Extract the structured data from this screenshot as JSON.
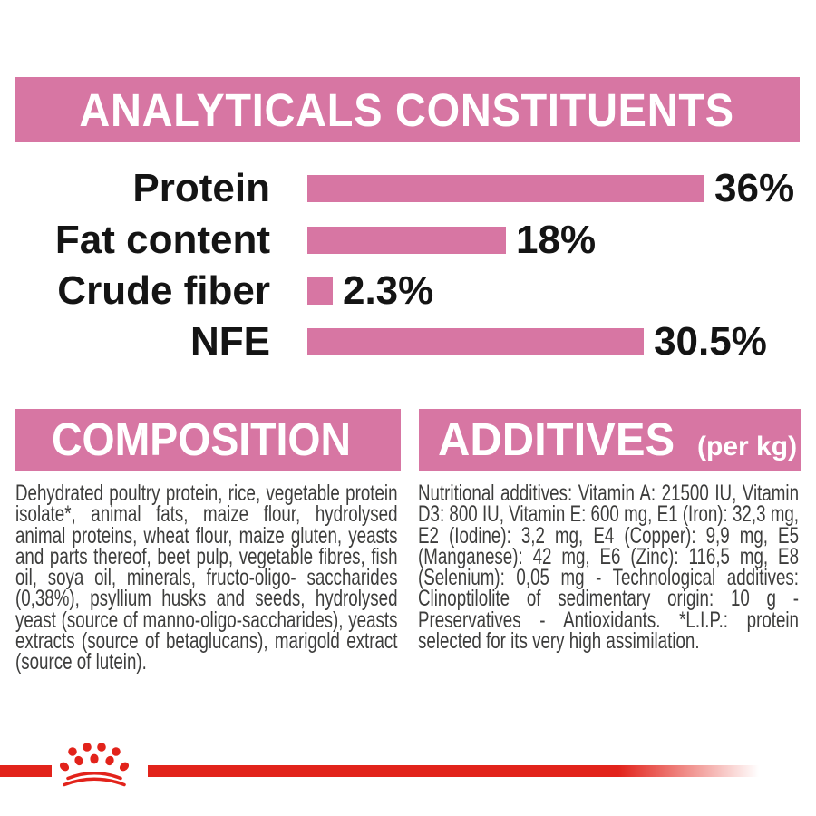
{
  "colors": {
    "pink": "#d776a3",
    "red": "#e2231b",
    "text_dark": "#3d3d3c",
    "text_black": "#141414"
  },
  "header": {
    "title": "ANALYTICALS CONSTITUENTS"
  },
  "chart_data": {
    "type": "bar",
    "orientation": "horizontal",
    "categories": [
      "Protein",
      "Fat content",
      "Crude fiber",
      "NFE"
    ],
    "values": [
      36,
      18,
      2.3,
      30.5
    ],
    "value_labels": [
      "36%",
      "18%",
      "2.3%",
      "30.5%"
    ],
    "unit": "%",
    "xlim": [
      0,
      36
    ],
    "bar_color": "#d776a3",
    "grid": false,
    "legend": false
  },
  "sections": {
    "composition": {
      "title": "COMPOSITION",
      "body": "Dehydrated poultry protein, rice, vegetable protein isolate*, animal fats, maize flour, hydrolysed animal proteins, wheat flour, maize gluten, yeasts and parts thereof, beet pulp, vegetable fibres, fish oil, soya oil, minerals, fructo-oligo- saccharides (0,38%), psyllium husks and seeds, hydrolysed yeast (source of manno-oligo-saccharides), yeasts extracts (source of betaglucans), marigold extract (source of lutein)."
    },
    "additives": {
      "title": "ADDITIVES",
      "subtitle": "(per kg)",
      "body": "Nutritional additives: Vitamin A: 21500 IU, Vitamin D3: 800 IU, Vitamin E: 600 mg, E1 (Iron): 32,3 mg, E2 (Iodine): 3,2 mg, E4 (Copper): 9,9 mg, E5 (Manganese): 42 mg, E6 (Zinc): 116,5 mg, E8 (Selenium): 0,05 mg - Technological additives: Clinoptilolite of sedimentary origin: 10 g - Preservatives - Antioxidants. *L.I.P.: protein selected for its very high assimilation."
    }
  },
  "footer": {
    "logo": "royal-canin-crown"
  }
}
